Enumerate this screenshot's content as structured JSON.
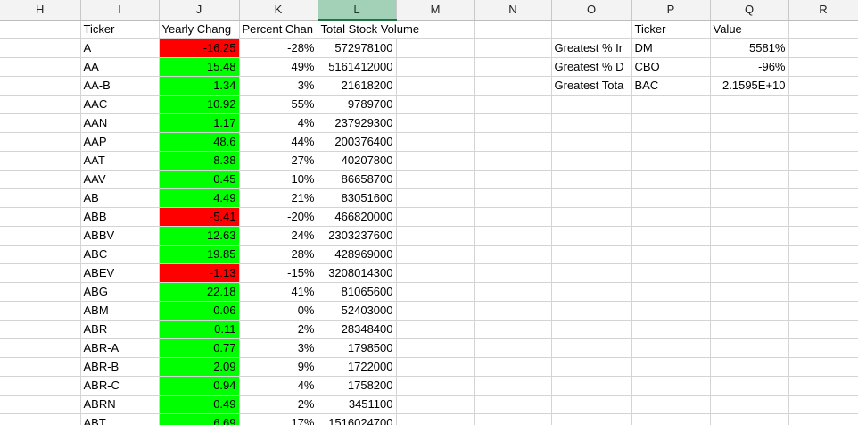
{
  "columns": [
    "H",
    "I",
    "J",
    "K",
    "L",
    "M",
    "N",
    "O",
    "P",
    "Q",
    "R"
  ],
  "selected_column": "L",
  "colors": {
    "positive": "#00ff00",
    "negative": "#ff0000",
    "header_selected": "#a3d1b7"
  },
  "header_row": {
    "ticker": "Ticker",
    "yearly_change": "Yearly Chang",
    "percent_change": "Percent Chan",
    "total_volume": "Total Stock Volume",
    "summary_ticker": "Ticker",
    "summary_value": "Value"
  },
  "summary": [
    {
      "label": "Greatest % Ir",
      "ticker": "DM",
      "value": "5581%"
    },
    {
      "label": "Greatest % D",
      "ticker": "CBO",
      "value": "-96%"
    },
    {
      "label": "Greatest Tota",
      "ticker": "BAC",
      "value": "2.1595E+10"
    }
  ],
  "rows": [
    {
      "ticker": "A",
      "change": "-16.25",
      "pct": "-28%",
      "volume": "572978100",
      "sign": "neg"
    },
    {
      "ticker": "AA",
      "change": "15.48",
      "pct": "49%",
      "volume": "5161412000",
      "sign": "pos"
    },
    {
      "ticker": "AA-B",
      "change": "1.34",
      "pct": "3%",
      "volume": "21618200",
      "sign": "pos"
    },
    {
      "ticker": "AAC",
      "change": "10.92",
      "pct": "55%",
      "volume": "9789700",
      "sign": "pos"
    },
    {
      "ticker": "AAN",
      "change": "1.17",
      "pct": "4%",
      "volume": "237929300",
      "sign": "pos"
    },
    {
      "ticker": "AAP",
      "change": "48.6",
      "pct": "44%",
      "volume": "200376400",
      "sign": "pos"
    },
    {
      "ticker": "AAT",
      "change": "8.38",
      "pct": "27%",
      "volume": "40207800",
      "sign": "pos"
    },
    {
      "ticker": "AAV",
      "change": "0.45",
      "pct": "10%",
      "volume": "86658700",
      "sign": "pos"
    },
    {
      "ticker": "AB",
      "change": "4.49",
      "pct": "21%",
      "volume": "83051600",
      "sign": "pos"
    },
    {
      "ticker": "ABB",
      "change": "-5.41",
      "pct": "-20%",
      "volume": "466820000",
      "sign": "neg"
    },
    {
      "ticker": "ABBV",
      "change": "12.63",
      "pct": "24%",
      "volume": "2303237600",
      "sign": "pos"
    },
    {
      "ticker": "ABC",
      "change": "19.85",
      "pct": "28%",
      "volume": "428969000",
      "sign": "pos"
    },
    {
      "ticker": "ABEV",
      "change": "-1.13",
      "pct": "-15%",
      "volume": "3208014300",
      "sign": "neg"
    },
    {
      "ticker": "ABG",
      "change": "22.18",
      "pct": "41%",
      "volume": "81065600",
      "sign": "pos"
    },
    {
      "ticker": "ABM",
      "change": "0.06",
      "pct": "0%",
      "volume": "52403000",
      "sign": "pos"
    },
    {
      "ticker": "ABR",
      "change": "0.11",
      "pct": "2%",
      "volume": "28348400",
      "sign": "pos"
    },
    {
      "ticker": "ABR-A",
      "change": "0.77",
      "pct": "3%",
      "volume": "1798500",
      "sign": "pos"
    },
    {
      "ticker": "ABR-B",
      "change": "2.09",
      "pct": "9%",
      "volume": "1722000",
      "sign": "pos"
    },
    {
      "ticker": "ABR-C",
      "change": "0.94",
      "pct": "4%",
      "volume": "1758200",
      "sign": "pos"
    },
    {
      "ticker": "ABRN",
      "change": "0.49",
      "pct": "2%",
      "volume": "3451100",
      "sign": "pos"
    },
    {
      "ticker": "ABT",
      "change": "6.69",
      "pct": "17%",
      "volume": "1516024700",
      "sign": "pos"
    }
  ]
}
